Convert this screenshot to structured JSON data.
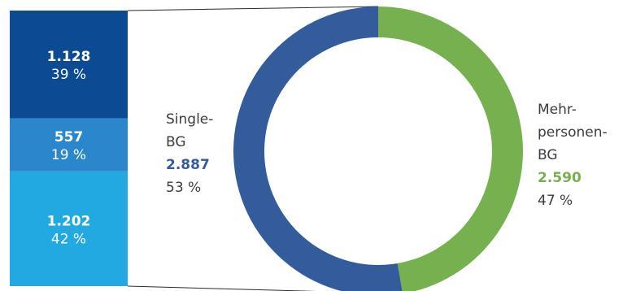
{
  "chart_data": [
    {
      "type": "pie",
      "variant": "donut",
      "categories": [
        "Single-BG",
        "Mehrpersonen-BG"
      ],
      "values": [
        2887,
        2590
      ],
      "value_labels": [
        "2.887",
        "2.590"
      ],
      "percent_labels": [
        "53 %",
        "47 %"
      ],
      "label_lines": [
        [
          "Single-",
          "BG"
        ],
        [
          "Mehr-",
          "personen-",
          "BG"
        ]
      ],
      "colors": [
        "#345c9c",
        "#77b14f"
      ],
      "legend": "none"
    },
    {
      "type": "bar",
      "variant": "stacked-100",
      "parent_category": "Single-BG",
      "values": [
        1128,
        557,
        1202
      ],
      "value_labels": [
        "1.128",
        "557",
        "1.202"
      ],
      "percent_labels": [
        "39 %",
        "19 %",
        "42 %"
      ],
      "colors": [
        "#0d4a94",
        "#2c86cc",
        "#23a9e1"
      ],
      "legend": "none"
    }
  ]
}
